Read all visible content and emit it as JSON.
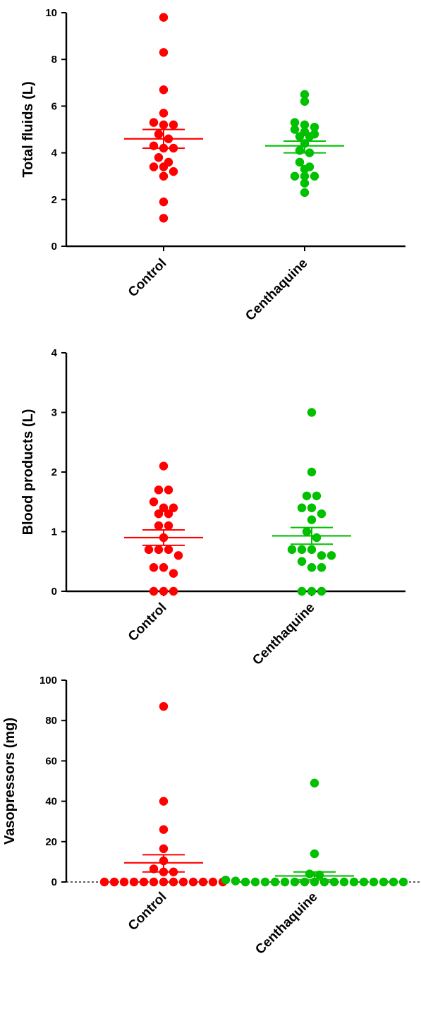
{
  "chart_data": [
    {
      "type": "scatter",
      "ylabel": "Total fluids (L)",
      "categories": [
        "Control",
        "Centhaquine"
      ],
      "ylim": [
        0,
        10
      ],
      "yticks": [
        0,
        2,
        4,
        6,
        8,
        10
      ],
      "zero_line": false,
      "series": [
        {
          "color": "#ff0000",
          "values": [
            9.8,
            8.3,
            6.7,
            5.7,
            5.3,
            5.2,
            5.2,
            4.8,
            4.6,
            4.3,
            4.2,
            4.2,
            3.8,
            3.6,
            3.4,
            3.4,
            3.2,
            3.0,
            1.9,
            1.2
          ],
          "mean": 4.6,
          "sem": [
            4.2,
            5.0
          ]
        },
        {
          "color": "#00c000",
          "values": [
            6.5,
            6.2,
            5.3,
            5.2,
            5.1,
            5.0,
            4.9,
            4.8,
            4.7,
            4.7,
            4.4,
            4.1,
            4.0,
            3.6,
            3.4,
            3.3,
            3.0,
            3.0,
            3.0,
            2.7,
            2.3
          ],
          "mean": 4.3,
          "sem": [
            4.0,
            4.5
          ]
        }
      ]
    },
    {
      "type": "scatter",
      "ylabel": "Blood products (L)",
      "categories": [
        "Control",
        "Centhaquine"
      ],
      "ylim": [
        0,
        4
      ],
      "yticks": [
        0,
        1,
        2,
        3,
        4
      ],
      "zero_line": false,
      "series": [
        {
          "color": "#ff0000",
          "values": [
            2.1,
            1.7,
            1.7,
            1.5,
            1.4,
            1.4,
            1.3,
            1.3,
            1.1,
            1.1,
            0.9,
            0.7,
            0.7,
            0.7,
            0.6,
            0.4,
            0.4,
            0.3,
            0.0,
            0.0,
            0.0
          ],
          "mean": 0.9,
          "sem": [
            0.77,
            1.03
          ]
        },
        {
          "color": "#00c000",
          "values": [
            3.0,
            2.0,
            1.6,
            1.6,
            1.4,
            1.4,
            1.3,
            1.2,
            1.0,
            0.9,
            0.7,
            0.7,
            0.7,
            0.6,
            0.6,
            0.5,
            0.4,
            0.4,
            0.0,
            0.0,
            0.0
          ],
          "mean": 0.93,
          "sem": [
            0.79,
            1.07
          ]
        }
      ]
    },
    {
      "type": "scatter",
      "ylabel": "Vasopressors (mg)",
      "categories": [
        "Control",
        "Centhaquine"
      ],
      "ylim": [
        0,
        100
      ],
      "yticks": [
        0,
        20,
        40,
        60,
        80,
        100
      ],
      "zero_line": true,
      "series": [
        {
          "color": "#ff0000",
          "values": [
            87,
            40,
            26,
            16.5,
            10.5,
            6.5,
            5,
            5,
            0,
            0,
            0,
            0,
            0,
            0,
            0,
            0,
            0,
            0,
            0,
            0,
            0
          ],
          "mean": 9.5,
          "sem": [
            5,
            13.5
          ]
        },
        {
          "color": "#00c000",
          "values": [
            49,
            14,
            4,
            3.5,
            1,
            0.5,
            0,
            0,
            0,
            0,
            0,
            0,
            0,
            0,
            0,
            0,
            0,
            0,
            0,
            0,
            0,
            0,
            0
          ],
          "mean": 3,
          "sem": [
            1,
            5
          ]
        }
      ]
    }
  ]
}
